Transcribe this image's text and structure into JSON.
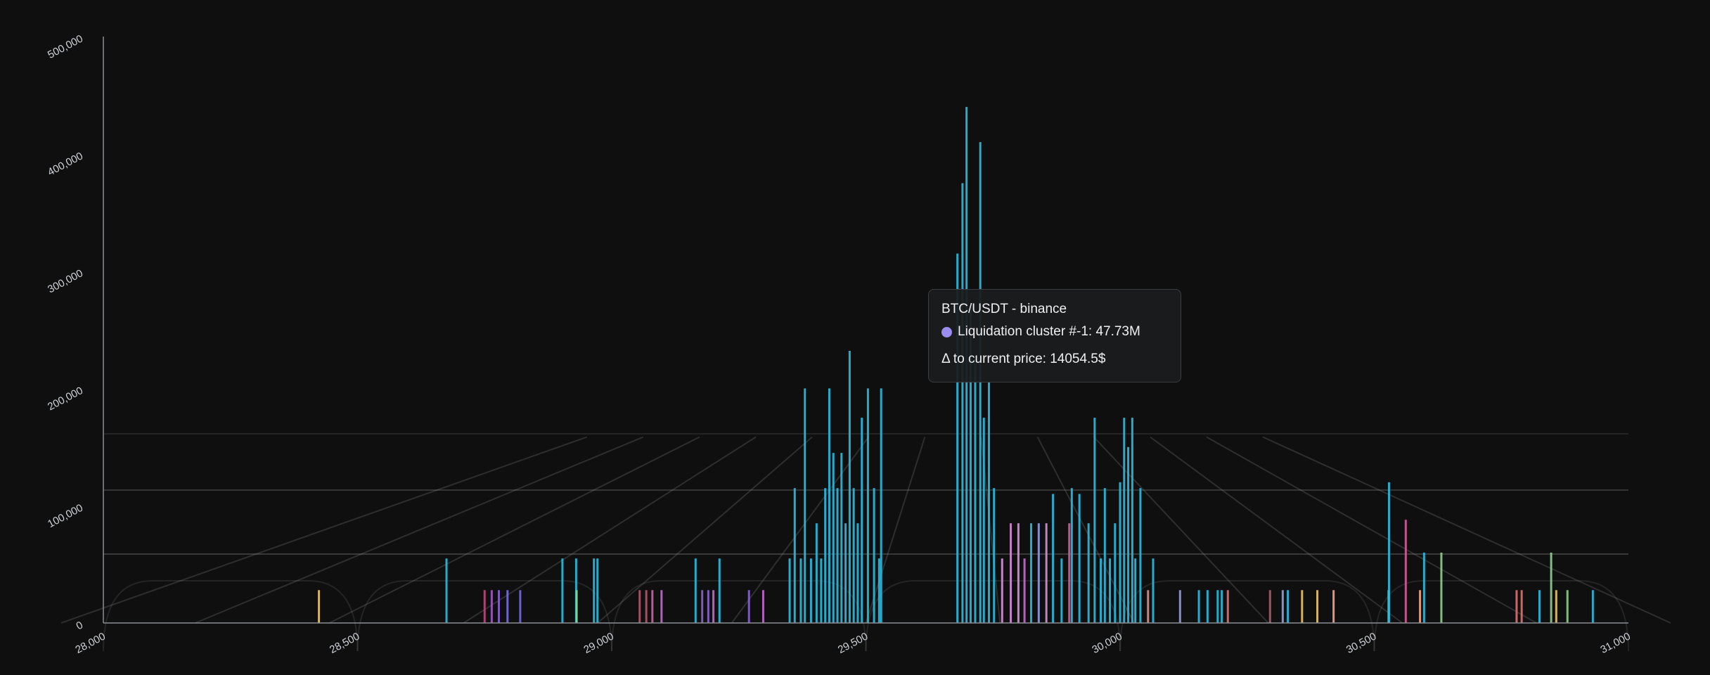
{
  "chart_data": {
    "type": "bar",
    "title": "",
    "xlabel": "",
    "ylabel": "",
    "xlim": [
      28000,
      31000
    ],
    "ylim": [
      0,
      500000
    ],
    "x_ticks": [
      {
        "value": 28000,
        "label": "28,000"
      },
      {
        "value": 28500,
        "label": "28,500"
      },
      {
        "value": 29000,
        "label": "29,000"
      },
      {
        "value": 29500,
        "label": "29,500"
      },
      {
        "value": 30000,
        "label": "30,000"
      },
      {
        "value": 30500,
        "label": "30,500"
      },
      {
        "value": 31000,
        "label": "31,000"
      }
    ],
    "y_ticks": [
      {
        "value": 0,
        "label": "0"
      },
      {
        "value": 100000,
        "label": "100,000"
      },
      {
        "value": 200000,
        "label": "200,000"
      },
      {
        "value": 300000,
        "label": "300,000"
      },
      {
        "value": 400000,
        "label": "400,000"
      },
      {
        "value": 500000,
        "label": "500,000"
      }
    ],
    "grid": true,
    "floor_grid": true,
    "bars": [
      {
        "x": 28424,
        "y": 28000,
        "color": "#e9c46a"
      },
      {
        "x": 28675,
        "y": 55000,
        "color": "#2bbde0"
      },
      {
        "x": 28750,
        "y": 28000,
        "color": "#c0467f"
      },
      {
        "x": 28764,
        "y": 28000,
        "color": "#a05bc4"
      },
      {
        "x": 28778,
        "y": 28000,
        "color": "#8a63d2"
      },
      {
        "x": 28795,
        "y": 28000,
        "color": "#7b6fe0"
      },
      {
        "x": 28820,
        "y": 28000,
        "color": "#6f6ddc"
      },
      {
        "x": 28903,
        "y": 55000,
        "color": "#2bbde0"
      },
      {
        "x": 28930,
        "y": 55000,
        "color": "#2bbde0"
      },
      {
        "x": 28931,
        "y": 28000,
        "color": "#8fd08f"
      },
      {
        "x": 28965,
        "y": 55000,
        "color": "#2bbde0"
      },
      {
        "x": 28972,
        "y": 55000,
        "color": "#2bbde0"
      },
      {
        "x": 29055,
        "y": 28000,
        "color": "#b05a6d"
      },
      {
        "x": 29068,
        "y": 28000,
        "color": "#b05a6d"
      },
      {
        "x": 29080,
        "y": 28000,
        "color": "#c46aa2"
      },
      {
        "x": 29098,
        "y": 28000,
        "color": "#c46ad0"
      },
      {
        "x": 29165,
        "y": 55000,
        "color": "#2bbde0"
      },
      {
        "x": 29178,
        "y": 28000,
        "color": "#8a63d2"
      },
      {
        "x": 29190,
        "y": 28000,
        "color": "#8a63d2"
      },
      {
        "x": 29200,
        "y": 28000,
        "color": "#c46ad0"
      },
      {
        "x": 29212,
        "y": 55000,
        "color": "#2bbde0"
      },
      {
        "x": 29270,
        "y": 28000,
        "color": "#8a63d2"
      },
      {
        "x": 29298,
        "y": 28000,
        "color": "#c46ad0"
      },
      {
        "x": 29350,
        "y": 55000,
        "color": "#2bbde0"
      },
      {
        "x": 29360,
        "y": 115000,
        "color": "#2bbde0"
      },
      {
        "x": 29372,
        "y": 55000,
        "color": "#2bbde0"
      },
      {
        "x": 29380,
        "y": 200000,
        "color": "#2bbde0"
      },
      {
        "x": 29392,
        "y": 55000,
        "color": "#2bbde0"
      },
      {
        "x": 29403,
        "y": 85000,
        "color": "#2bbde0"
      },
      {
        "x": 29412,
        "y": 55000,
        "color": "#2bbde0"
      },
      {
        "x": 29420,
        "y": 115000,
        "color": "#2bbde0"
      },
      {
        "x": 29428,
        "y": 200000,
        "color": "#2bbde0"
      },
      {
        "x": 29436,
        "y": 145000,
        "color": "#2bbde0"
      },
      {
        "x": 29444,
        "y": 115000,
        "color": "#2bbde0"
      },
      {
        "x": 29452,
        "y": 145000,
        "color": "#2bbde0"
      },
      {
        "x": 29460,
        "y": 85000,
        "color": "#2bbde0"
      },
      {
        "x": 29468,
        "y": 232000,
        "color": "#2bbde0"
      },
      {
        "x": 29476,
        "y": 115000,
        "color": "#2bbde0"
      },
      {
        "x": 29484,
        "y": 85000,
        "color": "#2bbde0"
      },
      {
        "x": 29492,
        "y": 175000,
        "color": "#2bbde0"
      },
      {
        "x": 29504,
        "y": 200000,
        "color": "#2bbde0"
      },
      {
        "x": 29516,
        "y": 115000,
        "color": "#2bbde0"
      },
      {
        "x": 29526,
        "y": 55000,
        "color": "#2bbde0"
      },
      {
        "x": 29530,
        "y": 200000,
        "color": "#2bbde0"
      },
      {
        "x": 29680,
        "y": 315000,
        "color": "#2bbde0"
      },
      {
        "x": 29690,
        "y": 375000,
        "color": "#2bbde0"
      },
      {
        "x": 29698,
        "y": 440000,
        "color": "#2bbde0"
      },
      {
        "x": 29706,
        "y": 270000,
        "color": "#2bbde0"
      },
      {
        "x": 29715,
        "y": 225000,
        "color": "#2bbde0"
      },
      {
        "x": 29725,
        "y": 410000,
        "color": "#2bbde0"
      },
      {
        "x": 29732,
        "y": 175000,
        "color": "#2bbde0"
      },
      {
        "x": 29742,
        "y": 205000,
        "color": "#2bbde0"
      },
      {
        "x": 29752,
        "y": 115000,
        "color": "#2bbde0"
      },
      {
        "x": 29768,
        "y": 55000,
        "color": "#d890d8"
      },
      {
        "x": 29785,
        "y": 85000,
        "color": "#d890d8"
      },
      {
        "x": 29800,
        "y": 85000,
        "color": "#d890d8"
      },
      {
        "x": 29812,
        "y": 55000,
        "color": "#c46ad0"
      },
      {
        "x": 29825,
        "y": 85000,
        "color": "#2bbde0"
      },
      {
        "x": 29840,
        "y": 85000,
        "color": "#8fa0e0"
      },
      {
        "x": 29855,
        "y": 85000,
        "color": "#d890d8"
      },
      {
        "x": 29868,
        "y": 110000,
        "color": "#2bbde0"
      },
      {
        "x": 29885,
        "y": 55000,
        "color": "#2bbde0"
      },
      {
        "x": 29900,
        "y": 85000,
        "color": "#d85a9a"
      },
      {
        "x": 29905,
        "y": 115000,
        "color": "#2bbde0"
      },
      {
        "x": 29920,
        "y": 110000,
        "color": "#2bbde0"
      },
      {
        "x": 29938,
        "y": 85000,
        "color": "#2bbde0"
      },
      {
        "x": 29950,
        "y": 175000,
        "color": "#2bbde0"
      },
      {
        "x": 29962,
        "y": 55000,
        "color": "#2bbde0"
      },
      {
        "x": 29970,
        "y": 115000,
        "color": "#2bbde0"
      },
      {
        "x": 29980,
        "y": 55000,
        "color": "#2bbde0"
      },
      {
        "x": 29990,
        "y": 85000,
        "color": "#2bbde0"
      },
      {
        "x": 30000,
        "y": 120000,
        "color": "#2bbde0"
      },
      {
        "x": 30008,
        "y": 175000,
        "color": "#2bbde0"
      },
      {
        "x": 30016,
        "y": 150000,
        "color": "#2bbde0"
      },
      {
        "x": 30024,
        "y": 175000,
        "color": "#2bbde0"
      },
      {
        "x": 30030,
        "y": 55000,
        "color": "#2bbde0"
      },
      {
        "x": 30040,
        "y": 115000,
        "color": "#2bbde0"
      },
      {
        "x": 30055,
        "y": 28000,
        "color": "#e08f8f"
      },
      {
        "x": 30065,
        "y": 55000,
        "color": "#2bbde0"
      },
      {
        "x": 30118,
        "y": 28000,
        "color": "#8fa0e0"
      },
      {
        "x": 30155,
        "y": 28000,
        "color": "#2bbde0"
      },
      {
        "x": 30172,
        "y": 28000,
        "color": "#2bbde0"
      },
      {
        "x": 30192,
        "y": 28000,
        "color": "#2bbde0"
      },
      {
        "x": 30200,
        "y": 28000,
        "color": "#2bbde0"
      },
      {
        "x": 30212,
        "y": 28000,
        "color": "#e07070"
      },
      {
        "x": 30295,
        "y": 28000,
        "color": "#b05a6d"
      },
      {
        "x": 30320,
        "y": 28000,
        "color": "#8fa0e0"
      },
      {
        "x": 30330,
        "y": 28000,
        "color": "#2bbde0"
      },
      {
        "x": 30358,
        "y": 28000,
        "color": "#e9c46a"
      },
      {
        "x": 30388,
        "y": 28000,
        "color": "#e9c46a"
      },
      {
        "x": 30420,
        "y": 28000,
        "color": "#f4a48a"
      },
      {
        "x": 30528,
        "y": 28000,
        "color": "#2bbde0"
      },
      {
        "x": 30529,
        "y": 120000,
        "color": "#2bbde0"
      },
      {
        "x": 30562,
        "y": 88000,
        "color": "#d85a9a"
      },
      {
        "x": 30590,
        "y": 28000,
        "color": "#f4a48a"
      },
      {
        "x": 30598,
        "y": 60000,
        "color": "#2bbde0"
      },
      {
        "x": 30632,
        "y": 60000,
        "color": "#8fd08f"
      },
      {
        "x": 30780,
        "y": 28000,
        "color": "#e07070"
      },
      {
        "x": 30790,
        "y": 28000,
        "color": "#e07070"
      },
      {
        "x": 30825,
        "y": 28000,
        "color": "#2bbde0"
      },
      {
        "x": 30848,
        "y": 60000,
        "color": "#8fd08f"
      },
      {
        "x": 30858,
        "y": 28000,
        "color": "#e9c46a"
      },
      {
        "x": 30880,
        "y": 28000,
        "color": "#8fd08f"
      },
      {
        "x": 30930,
        "y": 28000,
        "color": "#2bbde0"
      }
    ]
  },
  "tooltip": {
    "title": "BTC/USDT - binance",
    "series_label": "Liquidation cluster #-1: 47.73M",
    "series_color": "#9b8cf0",
    "delta_label": "Δ to current price: 14054.5$"
  }
}
